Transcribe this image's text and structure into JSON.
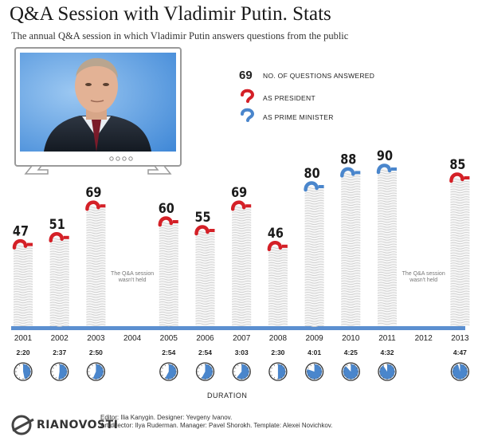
{
  "header": {
    "title": "Q&A Session with Vladimir Putin. Stats",
    "subtitle": "The annual Q&A session in which Vladimir Putin answers questions from the public"
  },
  "legend": {
    "sample_number": "69",
    "questions_label": "NO. OF QUESTIONS ANSWERED",
    "president_label": "AS PRESIDENT",
    "prime_minister_label": "AS PRIME MINISTER"
  },
  "colors": {
    "president": "#d42027",
    "prime_minister": "#4a86cc",
    "stack_line": "#cfcfcf",
    "baseline": "#5b8fd0"
  },
  "chart_data": {
    "type": "bar",
    "title": "Q&A Session with Vladimir Putin. Stats",
    "categories": [
      "2001",
      "2002",
      "2003",
      "2004",
      "2005",
      "2006",
      "2007",
      "2008",
      "2009",
      "2010",
      "2011",
      "2012",
      "2013"
    ],
    "values": [
      47,
      51,
      69,
      null,
      60,
      55,
      69,
      46,
      80,
      88,
      90,
      null,
      85
    ],
    "role": [
      "president",
      "president",
      "president",
      null,
      "president",
      "president",
      "president",
      "president",
      "prime_minister",
      "prime_minister",
      "prime_minister",
      null,
      "president"
    ],
    "durations": [
      "2:20",
      "2:37",
      "2:50",
      null,
      "2:54",
      "2:54",
      "3:03",
      "2:30",
      "4:01",
      "4:25",
      "4:32",
      null,
      "4:47"
    ],
    "duration_minutes": [
      140,
      157,
      170,
      null,
      174,
      174,
      183,
      150,
      241,
      265,
      272,
      null,
      287
    ],
    "not_held_note": "The Q&A session wasn't held",
    "duration_label": "DURATION",
    "ylim": [
      0,
      100
    ]
  },
  "footer": {
    "logo_text": "RIANOVOSTI",
    "credits_line1": "Editor: Ilia Kanygin. Designer: Yevgeny Ivanov.",
    "credits_line2": "Art director: Ilya Ruderman. Manager: Pavel Shorokh. Template: Alexei Novichkov."
  }
}
